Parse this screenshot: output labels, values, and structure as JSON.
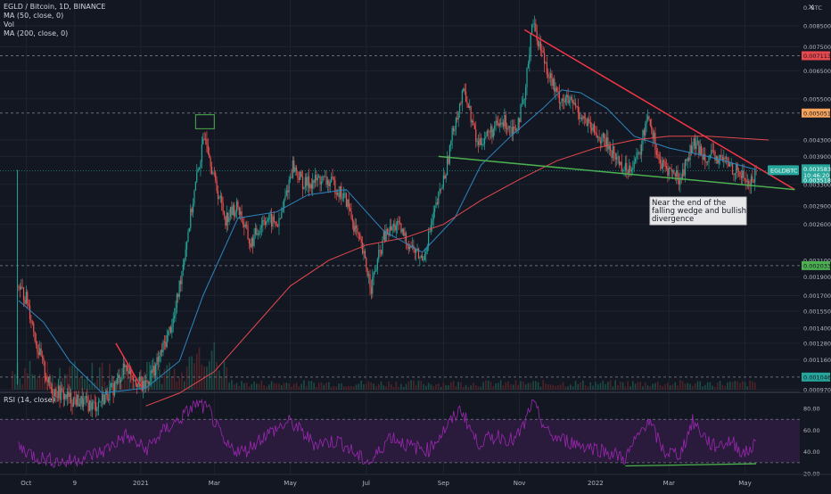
{
  "legend": {
    "symbol_line": "EGLD / Bitcoin, 1D, BINANCE",
    "ma50": "MA (50, close, 0)",
    "vol": "Vol",
    "ma200": "MA (200, close, 0)"
  },
  "rsi_label": "RSI (14, close)",
  "close_icon": "close-icon",
  "currency_label": "0. BTC",
  "colors": {
    "bg": "#131722",
    "grid": "#1f2331",
    "up": "#26a69a",
    "down": "#ef5350",
    "ma50": "#2e86c1",
    "ma200": "#e5484d",
    "rsi": "#9c27b0",
    "trend_red": "#f23645",
    "trend_green": "#4caf50"
  },
  "chart_data": [
    {
      "type": "candlestick",
      "title": "EGLD / Bitcoin, 1D, BINANCE",
      "yscale": "log",
      "ylim": [
        0.00097,
        0.0095
      ],
      "price_ticks": [
        "0.008500",
        "0.007500",
        "0.006500",
        "0.005500",
        "0.004300",
        "0.003900",
        "0.003300",
        "0.002900",
        "0.002600",
        "0.002100",
        "0.001900",
        "0.001700",
        "0.001550",
        "0.001400",
        "0.001280",
        "0.001160",
        "0.000970"
      ],
      "time_ticks": [
        "Oct",
        "9",
        "2021",
        "Mar",
        "May",
        "Jul",
        "Sep",
        "Nov",
        "2022",
        "Mar",
        "May"
      ],
      "price_path": [
        [
          "2020-09-25",
          0.0018
        ],
        [
          "2020-10-02",
          0.00165
        ],
        [
          "2020-10-10",
          0.00125
        ],
        [
          "2020-10-20",
          0.00098
        ],
        [
          "2020-11-05",
          0.00092
        ],
        [
          "2020-11-25",
          0.00088
        ],
        [
          "2020-12-10",
          0.00098
        ],
        [
          "2020-12-20",
          0.00112
        ],
        [
          "2021-01-03",
          0.00098
        ],
        [
          "2021-01-15",
          0.00115
        ],
        [
          "2021-01-28",
          0.0015
        ],
        [
          "2021-02-08",
          0.0025
        ],
        [
          "2021-02-16",
          0.0036
        ],
        [
          "2021-02-22",
          0.0045
        ],
        [
          "2021-03-01",
          0.0034
        ],
        [
          "2021-03-10",
          0.0027
        ],
        [
          "2021-03-20",
          0.0029
        ],
        [
          "2021-03-30",
          0.0023
        ],
        [
          "2021-04-10",
          0.0027
        ],
        [
          "2021-04-22",
          0.0026
        ],
        [
          "2021-05-03",
          0.0037
        ],
        [
          "2021-05-12",
          0.0033
        ],
        [
          "2021-05-25",
          0.0034
        ],
        [
          "2021-06-05",
          0.0033
        ],
        [
          "2021-06-15",
          0.003
        ],
        [
          "2021-06-28",
          0.0022
        ],
        [
          "2021-07-05",
          0.0018
        ],
        [
          "2021-07-15",
          0.0024
        ],
        [
          "2021-07-25",
          0.0026
        ],
        [
          "2021-08-05",
          0.0023
        ],
        [
          "2021-08-15",
          0.0021
        ],
        [
          "2021-08-25",
          0.0028
        ],
        [
          "2021-09-03",
          0.0036
        ],
        [
          "2021-09-10",
          0.0048
        ],
        [
          "2021-09-18",
          0.0058
        ],
        [
          "2021-09-28",
          0.0042
        ],
        [
          "2021-10-08",
          0.0045
        ],
        [
          "2021-10-20",
          0.0048
        ],
        [
          "2021-10-28",
          0.0046
        ],
        [
          "2021-11-05",
          0.0054
        ],
        [
          "2021-11-11",
          0.0088
        ],
        [
          "2021-11-20",
          0.0071
        ],
        [
          "2021-12-01",
          0.0056
        ],
        [
          "2021-12-15",
          0.0053
        ],
        [
          "2021-12-28",
          0.0046
        ],
        [
          "2022-01-10",
          0.0042
        ],
        [
          "2022-01-25",
          0.0036
        ],
        [
          "2022-02-05",
          0.0039
        ],
        [
          "2022-02-12",
          0.0051
        ],
        [
          "2022-02-22",
          0.0037
        ],
        [
          "2022-03-01",
          0.0036
        ],
        [
          "2022-03-10",
          0.0034
        ],
        [
          "2022-03-20",
          0.0042
        ],
        [
          "2022-04-01",
          0.0039
        ],
        [
          "2022-04-15",
          0.0038
        ],
        [
          "2022-04-28",
          0.0035
        ],
        [
          "2022-05-05",
          0.0033
        ],
        [
          "2022-05-10",
          0.00358
        ]
      ],
      "ma50": [
        [
          "2020-09-25",
          0.00165
        ],
        [
          "2020-10-15",
          0.00145
        ],
        [
          "2020-11-05",
          0.00115
        ],
        [
          "2020-12-01",
          0.00095
        ],
        [
          "2021-01-05",
          0.00098
        ],
        [
          "2021-02-01",
          0.00115
        ],
        [
          "2021-02-20",
          0.0017
        ],
        [
          "2021-03-20",
          0.0027
        ],
        [
          "2021-04-20",
          0.0028
        ],
        [
          "2021-05-15",
          0.0031
        ],
        [
          "2021-06-15",
          0.0032
        ],
        [
          "2021-07-15",
          0.0025
        ],
        [
          "2021-08-15",
          0.0022
        ],
        [
          "2021-09-10",
          0.0027
        ],
        [
          "2021-10-01",
          0.0037
        ],
        [
          "2021-10-25",
          0.0044
        ],
        [
          "2021-11-20",
          0.0052
        ],
        [
          "2021-12-05",
          0.0058
        ],
        [
          "2021-12-20",
          0.0057
        ],
        [
          "2022-01-10",
          0.0052
        ],
        [
          "2022-02-01",
          0.0044
        ],
        [
          "2022-03-01",
          0.0041
        ],
        [
          "2022-04-01",
          0.0039
        ],
        [
          "2022-05-10",
          0.0036
        ]
      ],
      "ma200": [
        [
          "2021-01-05",
          0.00088
        ],
        [
          "2021-02-01",
          0.00095
        ],
        [
          "2021-03-01",
          0.00108
        ],
        [
          "2021-04-01",
          0.0014
        ],
        [
          "2021-05-01",
          0.0018
        ],
        [
          "2021-06-01",
          0.0021
        ],
        [
          "2021-07-01",
          0.0023
        ],
        [
          "2021-08-01",
          0.0024
        ],
        [
          "2021-09-01",
          0.0026
        ],
        [
          "2021-10-01",
          0.003
        ],
        [
          "2021-11-01",
          0.0034
        ],
        [
          "2021-12-01",
          0.0038
        ],
        [
          "2022-01-01",
          0.0041
        ],
        [
          "2022-02-01",
          0.0043
        ],
        [
          "2022-03-01",
          0.0044
        ],
        [
          "2022-04-01",
          0.0044
        ],
        [
          "2022-05-20",
          0.0043
        ]
      ],
      "horizontal_levels": [
        0.00711,
        0.005051,
        0.002033,
        0.001046
      ],
      "price_badges": [
        {
          "label": "0.007113",
          "value": 0.00711,
          "color": "#e5484d"
        },
        {
          "label": "0.005051",
          "value": 0.005051,
          "color": "#f7a35c"
        },
        {
          "label": "0.002033",
          "value": 0.002033,
          "color": "#4caf50"
        },
        {
          "label": "0.001046",
          "value": 0.001046,
          "color": "#26a69a"
        }
      ],
      "current": {
        "symbol": "EGLDBTC",
        "price": "0.003583",
        "countdown": "10:46:20",
        "low_label": "0.003518",
        "value": 0.003583
      },
      "trendlines": [
        {
          "color": "#f23645",
          "points": [
            [
              "2021-11-05",
              0.0083
            ],
            [
              "2022-06-10",
              0.0032
            ]
          ]
        },
        {
          "color": "#4caf50",
          "points": [
            [
              "2021-08-28",
              0.0039
            ],
            [
              "2022-06-10",
              0.0032
            ]
          ]
        },
        {
          "color": "#f23645",
          "points": [
            [
              "2020-12-12",
              0.00128
            ],
            [
              "2021-01-01",
              0.00099
            ]
          ]
        }
      ],
      "highlight_box": {
        "from": "2021-02-14",
        "to": "2021-03-01",
        "top": 0.005,
        "bottom": 0.0046
      },
      "annotation": {
        "lines": [
          "Near the end of the",
          "falling wedge and bullish",
          "divergence"
        ]
      }
    },
    {
      "type": "line",
      "name": "RSI (14, close)",
      "ylim": [
        20,
        90
      ],
      "yticks": [
        "80.00",
        "60.00",
        "40.00",
        "20.00"
      ],
      "bands": [
        30,
        70
      ],
      "rsi_path": [
        [
          "2020-09-25",
          45
        ],
        [
          "2020-10-10",
          35
        ],
        [
          "2020-11-01",
          30
        ],
        [
          "2020-12-01",
          40
        ],
        [
          "2020-12-20",
          55
        ],
        [
          "2021-01-05",
          42
        ],
        [
          "2021-01-20",
          60
        ],
        [
          "2021-02-01",
          70
        ],
        [
          "2021-02-15",
          85
        ],
        [
          "2021-02-25",
          78
        ],
        [
          "2021-03-10",
          45
        ],
        [
          "2021-03-25",
          40
        ],
        [
          "2021-04-10",
          55
        ],
        [
          "2021-05-01",
          68
        ],
        [
          "2021-05-20",
          48
        ],
        [
          "2021-06-10",
          50
        ],
        [
          "2021-06-25",
          35
        ],
        [
          "2021-07-05",
          30
        ],
        [
          "2021-07-20",
          55
        ],
        [
          "2021-08-05",
          45
        ],
        [
          "2021-08-20",
          42
        ],
        [
          "2021-09-05",
          65
        ],
        [
          "2021-09-15",
          80
        ],
        [
          "2021-09-28",
          48
        ],
        [
          "2021-10-15",
          55
        ],
        [
          "2021-10-28",
          50
        ],
        [
          "2021-11-05",
          65
        ],
        [
          "2021-11-11",
          86
        ],
        [
          "2021-11-25",
          55
        ],
        [
          "2021-12-15",
          48
        ],
        [
          "2022-01-05",
          42
        ],
        [
          "2022-01-25",
          34
        ],
        [
          "2022-02-12",
          70
        ],
        [
          "2022-02-25",
          40
        ],
        [
          "2022-03-10",
          38
        ],
        [
          "2022-03-20",
          68
        ],
        [
          "2022-04-05",
          45
        ],
        [
          "2022-04-20",
          50
        ],
        [
          "2022-05-01",
          38
        ],
        [
          "2022-05-10",
          48
        ]
      ],
      "divergence_line": [
        [
          "2022-01-25",
          27
        ],
        [
          "2022-05-10",
          29
        ]
      ]
    }
  ]
}
